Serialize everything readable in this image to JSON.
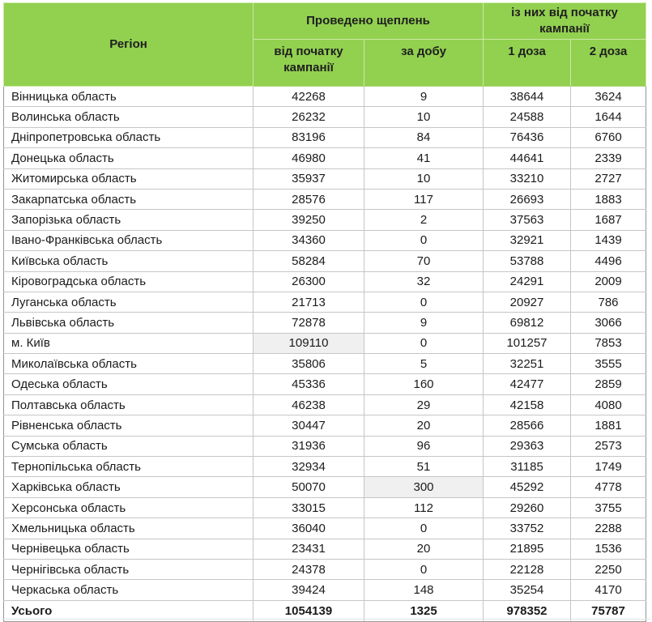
{
  "colors": {
    "header_bg": "#92d050",
    "header_text": "#1f1f1f",
    "body_text": "#1b1b1b",
    "grid_border": "#c6c6c6",
    "outer_border": "#949494",
    "highlight_bg": "#f0f0f0"
  },
  "chart_data": {
    "type": "table",
    "title": "",
    "column_groups": [
      {
        "label": "Проведено щеплень",
        "span": 2
      },
      {
        "label": "із них від початку кампанії",
        "span": 2
      }
    ],
    "columns": [
      "Регіон",
      "від початку кампанії",
      "за добу",
      "1 доза",
      "2 доза"
    ],
    "rows": [
      {
        "region": "Вінницька область",
        "values": [
          42268,
          9,
          38644,
          3624
        ]
      },
      {
        "region": "Волинська область",
        "values": [
          26232,
          10,
          24588,
          1644
        ]
      },
      {
        "region": "Дніпропетровська область",
        "values": [
          83196,
          84,
          76436,
          6760
        ]
      },
      {
        "region": "Донецька область",
        "values": [
          46980,
          41,
          44641,
          2339
        ]
      },
      {
        "region": "Житомирська область",
        "values": [
          35937,
          10,
          33210,
          2727
        ]
      },
      {
        "region": "Закарпатська область",
        "values": [
          28576,
          117,
          26693,
          1883
        ]
      },
      {
        "region": "Запорізька область",
        "values": [
          39250,
          2,
          37563,
          1687
        ]
      },
      {
        "region": "Івано-Франківська область",
        "values": [
          34360,
          0,
          32921,
          1439
        ]
      },
      {
        "region": "Київська область",
        "values": [
          58284,
          70,
          53788,
          4496
        ]
      },
      {
        "region": "Кіровоградська область",
        "values": [
          26300,
          32,
          24291,
          2009
        ]
      },
      {
        "region": "Луганська область",
        "values": [
          21713,
          0,
          20927,
          786
        ]
      },
      {
        "region": "Львівська область",
        "values": [
          72878,
          9,
          69812,
          3066
        ]
      },
      {
        "region": "м. Київ",
        "values": [
          109110,
          0,
          101257,
          7853
        ],
        "highlight_col": 0
      },
      {
        "region": "Миколаївська область",
        "values": [
          35806,
          5,
          32251,
          3555
        ]
      },
      {
        "region": "Одеська область",
        "values": [
          45336,
          160,
          42477,
          2859
        ]
      },
      {
        "region": "Полтавська область",
        "values": [
          46238,
          29,
          42158,
          4080
        ]
      },
      {
        "region": "Рівненська область",
        "values": [
          30447,
          20,
          28566,
          1881
        ]
      },
      {
        "region": "Сумська область",
        "values": [
          31936,
          96,
          29363,
          2573
        ]
      },
      {
        "region": "Тернопільська область",
        "values": [
          32934,
          51,
          31185,
          1749
        ]
      },
      {
        "region": "Харківська область",
        "values": [
          50070,
          300,
          45292,
          4778
        ],
        "highlight_col": 1
      },
      {
        "region": "Херсонська область",
        "values": [
          33015,
          112,
          29260,
          3755
        ]
      },
      {
        "region": "Хмельницька область",
        "values": [
          36040,
          0,
          33752,
          2288
        ]
      },
      {
        "region": "Чернівецька область",
        "values": [
          23431,
          20,
          21895,
          1536
        ]
      },
      {
        "region": "Чернігівська область",
        "values": [
          24378,
          0,
          22128,
          2250
        ]
      },
      {
        "region": "Черкаська область",
        "values": [
          39424,
          148,
          35254,
          4170
        ]
      }
    ],
    "total": {
      "label": "Усього",
      "values": [
        1054139,
        1325,
        978352,
        75787
      ]
    },
    "layout": {
      "grid": true,
      "highlighted_cells": [
        {
          "region": "м. Київ",
          "column": "від початку кампанії"
        },
        {
          "region": "Харківська область",
          "column": "за добу"
        }
      ]
    }
  }
}
